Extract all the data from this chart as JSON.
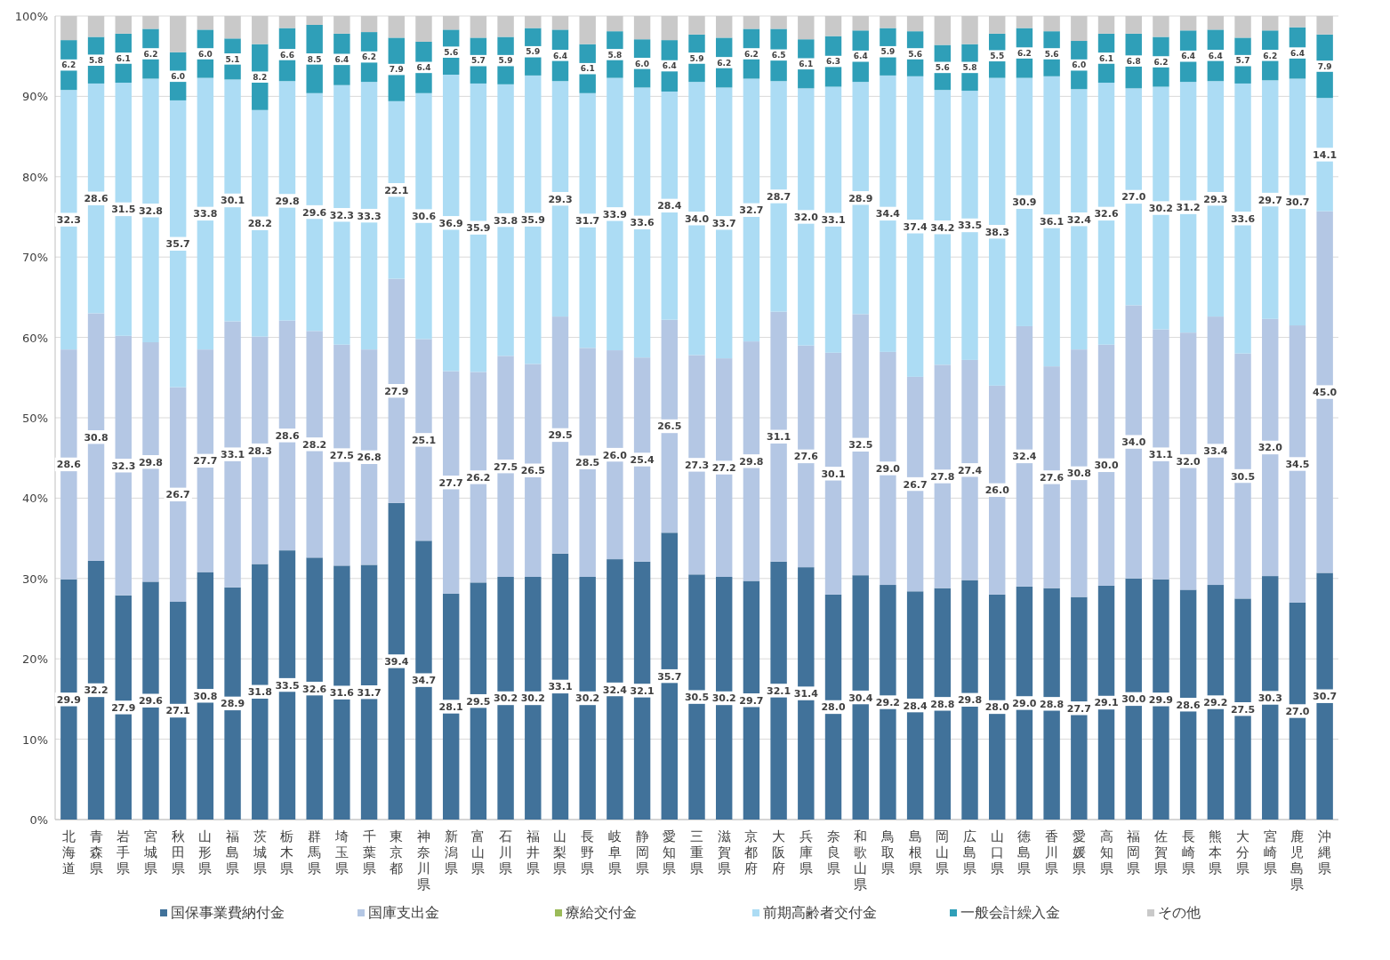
{
  "chart_data": {
    "type": "bar",
    "stacked": true,
    "categories": [
      "北海道",
      "青森県",
      "岩手県",
      "宮城県",
      "秋田県",
      "山形県",
      "福島県",
      "茨城県",
      "栃木県",
      "群馬県",
      "埼玉県",
      "千葉県",
      "東京都",
      "神奈川県",
      "新潟県",
      "富山県",
      "石川県",
      "福井県",
      "山梨県",
      "長野県",
      "岐阜県",
      "静岡県",
      "愛知県",
      "三重県",
      "滋賀県",
      "京都府",
      "大阪府",
      "兵庫県",
      "奈良県",
      "和歌山県",
      "鳥取県",
      "島根県",
      "岡山県",
      "広島県",
      "山口県",
      "徳島県",
      "香川県",
      "愛媛県",
      "高知県",
      "福岡県",
      "佐賀県",
      "長崎県",
      "熊本県",
      "大分県",
      "宮崎県",
      "鹿児島県",
      "沖縄県"
    ],
    "series": [
      {
        "name": "国保事業費納付金",
        "color": "#41729a",
        "values": [
          29.9,
          32.2,
          27.9,
          29.6,
          27.1,
          30.8,
          28.9,
          31.8,
          33.5,
          32.6,
          31.6,
          31.7,
          39.4,
          34.7,
          28.1,
          29.5,
          30.2,
          30.2,
          33.1,
          30.2,
          32.4,
          32.1,
          35.7,
          30.5,
          30.2,
          29.7,
          32.1,
          31.4,
          28.0,
          30.4,
          29.2,
          28.4,
          28.8,
          29.8,
          28.0,
          29.0,
          28.8,
          27.7,
          29.1,
          30.0,
          29.9,
          28.6,
          29.2,
          27.5,
          30.3,
          27.0,
          30.7
        ],
        "value_labels": [
          "29.9",
          "32.2",
          "27.9",
          "29.6",
          "27.1",
          "30.8",
          "28.9",
          "31.8",
          "33.5",
          "32.6",
          "31.6",
          "31.7",
          "39.4",
          "34.7",
          "28.1",
          "29.5",
          "30.2",
          "30.2",
          "33.1",
          "30.2",
          "32.4",
          "32.1",
          "35.7",
          "30.5",
          "30.2",
          "29.7",
          "32.1",
          "31.4",
          "28.0",
          "30.4",
          "29.2",
          "28.4",
          "28.8",
          "29.8",
          "28.0",
          "29.0",
          "28.8",
          "27.7",
          "29.1",
          "30.0",
          "29.9",
          "28.6",
          "29.2",
          "27.5",
          "30.3",
          "27.0",
          "30.7"
        ]
      },
      {
        "name": "国庫支出金",
        "color": "#b4c7e4",
        "values": [
          28.6,
          30.8,
          32.3,
          29.8,
          26.7,
          27.7,
          33.1,
          28.3,
          28.6,
          28.2,
          27.5,
          26.8,
          27.9,
          25.1,
          27.7,
          26.2,
          27.5,
          26.5,
          29.5,
          28.5,
          26.0,
          25.4,
          26.5,
          27.3,
          27.2,
          29.8,
          31.1,
          27.6,
          30.1,
          32.5,
          29.0,
          26.7,
          27.8,
          27.4,
          26.0,
          32.4,
          27.6,
          30.8,
          30.0,
          34.0,
          31.1,
          32.0,
          33.4,
          30.5,
          32.0,
          34.5,
          45.0
        ],
        "value_labels": [
          "28.6",
          "30.8",
          "32.3",
          "29.8",
          "26.7",
          "27.7",
          "33.1",
          "28.3",
          "28.6",
          "28.2",
          "27.5",
          "26.8",
          "27.9",
          "25.1",
          "27.7",
          "26.2",
          "27.5",
          "26.5",
          "29.5",
          "28.5",
          "26.0",
          "25.4",
          "26.5",
          "27.3",
          "27.2",
          "29.8",
          "31.1",
          "27.6",
          "30.1",
          "32.5",
          "29.0",
          "26.7",
          "27.8",
          "27.4",
          "26.0",
          "32.4",
          "27.6",
          "30.8",
          "30.0",
          "34.0",
          "31.1",
          "32.0",
          "33.4",
          "30.5",
          "32.0",
          "34.5",
          "45.0"
        ]
      },
      {
        "name": "療給交付金",
        "color": "#9bbb59",
        "values": [
          null,
          null,
          null,
          null,
          null,
          null,
          null,
          null,
          null,
          null,
          null,
          null,
          null,
          null,
          null,
          null,
          null,
          null,
          null,
          null,
          null,
          null,
          null,
          null,
          null,
          null,
          null,
          null,
          null,
          null,
          null,
          null,
          null,
          null,
          null,
          null,
          null,
          null,
          null,
          null,
          null,
          null,
          null,
          null,
          null,
          null,
          null
        ]
      },
      {
        "name": "前期高齢者交付金",
        "color": "#acdcf4",
        "values": [
          32.3,
          28.6,
          31.5,
          32.8,
          35.7,
          33.8,
          30.1,
          28.2,
          29.8,
          29.6,
          32.3,
          33.3,
          22.1,
          30.6,
          36.9,
          35.9,
          33.8,
          35.9,
          29.3,
          31.7,
          33.9,
          33.6,
          28.4,
          34.0,
          33.7,
          32.7,
          28.7,
          32.0,
          33.1,
          28.9,
          34.4,
          37.4,
          34.2,
          33.5,
          38.3,
          30.9,
          36.1,
          32.4,
          32.6,
          27.0,
          30.2,
          31.2,
          29.3,
          33.6,
          29.7,
          30.7,
          14.1
        ],
        "value_labels": [
          "32.3",
          "28.6",
          "31.5",
          "32.8",
          "35.7",
          "33.8",
          "30.1",
          "28.2",
          "29.8",
          "29.6",
          "32.3",
          "33.3",
          "22.1",
          "30.6",
          "36.9",
          "35.9",
          "33.8",
          "35.9",
          "29.3",
          "31.7",
          "33.9",
          "33.6",
          "28.4",
          "34.0",
          "33.7",
          "32.7",
          "28.7",
          "32.0",
          "33.1",
          "28.9",
          "34.4",
          "37.4",
          "34.2",
          "33.5",
          "38.3",
          "30.9",
          "36.1",
          "32.4",
          "32.6",
          "27.0",
          "30.2",
          "31.2",
          "29.3",
          "33.6",
          "29.7",
          "30.7",
          "14.1"
        ]
      },
      {
        "name": "一般会計繰入金",
        "color": "#2f9fb8",
        "values": [
          6.2,
          5.8,
          6.1,
          6.2,
          6.0,
          6.0,
          5.1,
          8.2,
          6.6,
          8.5,
          6.4,
          6.2,
          7.9,
          6.4,
          5.6,
          5.7,
          5.9,
          5.9,
          6.4,
          6.1,
          5.8,
          6.0,
          6.4,
          5.9,
          6.2,
          6.2,
          6.5,
          6.1,
          6.3,
          6.4,
          5.9,
          5.6,
          5.6,
          5.8,
          5.5,
          6.2,
          5.6,
          6.0,
          6.1,
          6.8,
          6.2,
          6.4,
          6.4,
          5.7,
          6.2,
          6.4,
          7.9
        ],
        "value_labels": [
          "6.2",
          "5.8",
          "6.1",
          "6.2",
          "6.0",
          "6.0",
          "5.1",
          "8.2",
          "6.6",
          "8.5",
          "6.4",
          "6.2",
          "7.9",
          "6.4",
          "5.6",
          "5.7",
          "5.9",
          "5.9",
          "6.4",
          "6.1",
          "5.8",
          "6.0",
          "6.4",
          "5.9",
          "6.2",
          "6.2",
          "6.5",
          "6.1",
          "6.3",
          "6.4",
          "5.9",
          "5.6",
          "5.6",
          "5.8",
          "5.5",
          "6.2",
          "5.6",
          "6.0",
          "6.1",
          "6.8",
          "6.2",
          "6.4",
          "6.4",
          "5.7",
          "6.2",
          "6.4",
          "7.9"
        ]
      },
      {
        "name": "その他",
        "color": "#c9c9c9",
        "values": [
          3.0,
          2.6,
          2.2,
          1.6,
          4.5,
          1.7,
          2.8,
          3.5,
          1.5,
          1.1,
          2.2,
          2.0,
          2.7,
          3.2,
          1.7,
          2.7,
          2.6,
          1.5,
          1.7,
          3.5,
          1.9,
          2.9,
          3.0,
          2.3,
          2.7,
          1.6,
          1.6,
          2.9,
          2.5,
          1.8,
          1.5,
          1.9,
          3.6,
          3.5,
          2.2,
          1.5,
          1.9,
          3.1,
          2.2,
          2.2,
          2.6,
          1.8,
          1.7,
          2.7,
          1.8,
          1.4,
          2.3
        ]
      }
    ],
    "ylim": [
      0,
      100
    ],
    "yticks": [
      {
        "value": 0,
        "label": "0%"
      },
      {
        "value": 10,
        "label": "10%"
      },
      {
        "value": 20,
        "label": "20%"
      },
      {
        "value": 30,
        "label": "30%"
      },
      {
        "value": 40,
        "label": "40%"
      },
      {
        "value": 50,
        "label": "50%"
      },
      {
        "value": 60,
        "label": "60%"
      },
      {
        "value": 70,
        "label": "70%"
      },
      {
        "value": 80,
        "label": "80%"
      },
      {
        "value": 90,
        "label": "90%"
      },
      {
        "value": 100,
        "label": "100%"
      }
    ],
    "grid": "y",
    "legend": "bottom"
  }
}
